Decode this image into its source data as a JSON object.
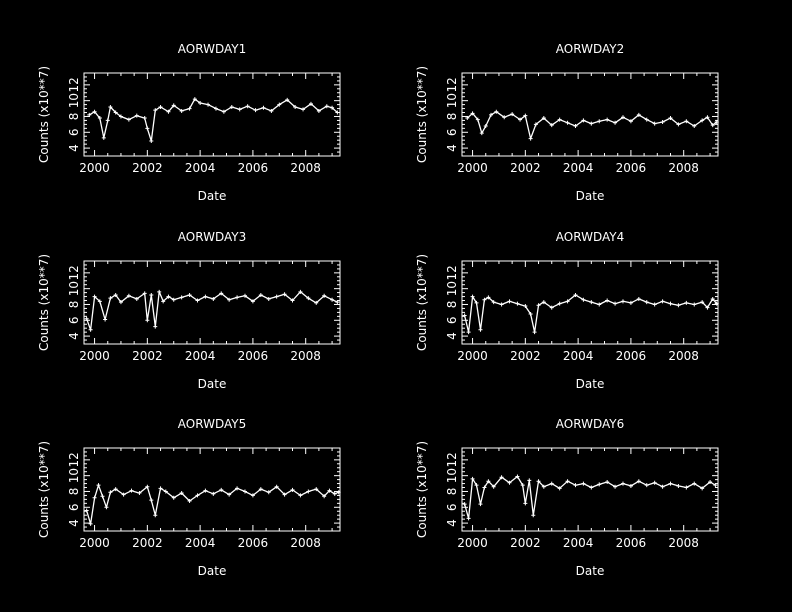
{
  "figure": {
    "background": "#000000",
    "foreground": "#ffffff"
  },
  "chart_data": [
    {
      "type": "line",
      "title": "AORWDAY1",
      "xlabel": "Date",
      "ylabel": "Counts (x10**7)",
      "xlim": [
        1999.6,
        2009.3
      ],
      "ylim": [
        3.0,
        13.5
      ],
      "xticks": [
        "2000",
        "2002",
        "2004",
        "2006",
        "2008"
      ],
      "yticks": [
        "4",
        "6",
        "8",
        "10",
        "12"
      ],
      "marker": "plus",
      "x": [
        1999.8,
        2000.0,
        2000.2,
        2000.35,
        2000.5,
        2000.6,
        2000.8,
        2001.0,
        2001.3,
        2001.6,
        2001.9,
        2002.0,
        2002.15,
        2002.3,
        2002.5,
        2002.8,
        2003.0,
        2003.3,
        2003.6,
        2003.8,
        2004.0,
        2004.3,
        2004.6,
        2004.9,
        2005.2,
        2005.5,
        2005.8,
        2006.1,
        2006.4,
        2006.7,
        2007.0,
        2007.3,
        2007.6,
        2007.9,
        2008.2,
        2008.5,
        2008.8,
        2009.0,
        2009.2
      ],
      "values": [
        8.2,
        8.6,
        7.8,
        5.3,
        7.5,
        9.2,
        8.5,
        8.0,
        7.6,
        8.1,
        7.8,
        6.5,
        4.9,
        8.8,
        9.2,
        8.6,
        9.4,
        8.7,
        9.0,
        10.2,
        9.7,
        9.5,
        9.0,
        8.6,
        9.2,
        8.9,
        9.3,
        8.8,
        9.1,
        8.7,
        9.5,
        10.1,
        9.2,
        8.9,
        9.6,
        8.7,
        9.3,
        9.1,
        8.5
      ]
    },
    {
      "type": "line",
      "title": "AORWDAY2",
      "xlabel": "Date",
      "ylabel": "Counts (x10**7)",
      "xlim": [
        1999.6,
        2009.3
      ],
      "ylim": [
        3.0,
        13.5
      ],
      "xticks": [
        "2000",
        "2002",
        "2004",
        "2006",
        "2008"
      ],
      "yticks": [
        "4",
        "6",
        "8",
        "10",
        "12"
      ],
      "marker": "plus",
      "x": [
        1999.8,
        2000.0,
        2000.2,
        2000.35,
        2000.5,
        2000.7,
        2000.9,
        2001.2,
        2001.5,
        2001.8,
        2002.0,
        2002.2,
        2002.4,
        2002.7,
        2003.0,
        2003.3,
        2003.6,
        2003.9,
        2004.2,
        2004.5,
        2004.8,
        2005.1,
        2005.4,
        2005.7,
        2006.0,
        2006.3,
        2006.6,
        2006.9,
        2007.2,
        2007.5,
        2007.8,
        2008.1,
        2008.4,
        2008.7,
        2008.9,
        2009.1,
        2009.25
      ],
      "values": [
        7.8,
        8.4,
        7.6,
        5.9,
        6.8,
        8.2,
        8.6,
        7.9,
        8.3,
        7.6,
        8.1,
        5.2,
        7.0,
        7.8,
        6.9,
        7.6,
        7.2,
        6.8,
        7.5,
        7.1,
        7.4,
        7.6,
        7.2,
        7.9,
        7.4,
        8.2,
        7.6,
        7.1,
        7.3,
        7.8,
        7.0,
        7.4,
        6.8,
        7.5,
        7.9,
        6.9,
        7.3
      ]
    },
    {
      "type": "line",
      "title": "AORWDAY3",
      "xlabel": "Date",
      "ylabel": "Counts (x10**7)",
      "xlim": [
        1999.6,
        2009.3
      ],
      "ylim": [
        3.0,
        13.5
      ],
      "xticks": [
        "2000",
        "2002",
        "2004",
        "2006",
        "2008"
      ],
      "yticks": [
        "4",
        "6",
        "8",
        "10",
        "12"
      ],
      "marker": "plus",
      "x": [
        1999.7,
        1999.85,
        2000.0,
        2000.2,
        2000.4,
        2000.6,
        2000.8,
        2001.0,
        2001.3,
        2001.6,
        2001.9,
        2002.0,
        2002.15,
        2002.3,
        2002.45,
        2002.6,
        2002.8,
        2003.0,
        2003.3,
        2003.6,
        2003.9,
        2004.2,
        2004.5,
        2004.8,
        2005.1,
        2005.4,
        2005.7,
        2006.0,
        2006.3,
        2006.6,
        2006.9,
        2007.2,
        2007.5,
        2007.8,
        2008.1,
        2008.4,
        2008.7,
        2009.0,
        2009.2
      ],
      "values": [
        6.2,
        4.8,
        9.0,
        8.4,
        6.1,
        8.8,
        9.2,
        8.3,
        9.1,
        8.7,
        9.4,
        6.0,
        9.2,
        5.2,
        9.6,
        8.4,
        9.0,
        8.6,
        8.9,
        9.2,
        8.5,
        9.0,
        8.7,
        9.4,
        8.6,
        8.9,
        9.1,
        8.4,
        9.2,
        8.7,
        9.0,
        9.3,
        8.5,
        9.6,
        8.8,
        8.2,
        9.1,
        8.6,
        8.3
      ]
    },
    {
      "type": "line",
      "title": "AORWDAY4",
      "xlabel": "Date",
      "ylabel": "Counts (x10**7)",
      "xlim": [
        1999.6,
        2009.3
      ],
      "ylim": [
        3.0,
        13.5
      ],
      "xticks": [
        "2000",
        "2002",
        "2004",
        "2006",
        "2008"
      ],
      "yticks": [
        "4",
        "6",
        "8",
        "10",
        "12"
      ],
      "marker": "plus",
      "x": [
        1999.7,
        1999.85,
        2000.0,
        2000.15,
        2000.3,
        2000.45,
        2000.6,
        2000.8,
        2001.1,
        2001.4,
        2001.7,
        2002.0,
        2002.2,
        2002.35,
        2002.5,
        2002.7,
        2003.0,
        2003.3,
        2003.6,
        2003.9,
        2004.2,
        2004.5,
        2004.8,
        2005.1,
        2005.4,
        2005.7,
        2006.0,
        2006.3,
        2006.6,
        2006.9,
        2007.2,
        2007.5,
        2007.8,
        2008.1,
        2008.4,
        2008.7,
        2008.9,
        2009.1,
        2009.25
      ],
      "values": [
        6.6,
        4.5,
        9.0,
        8.2,
        4.8,
        8.6,
        8.9,
        8.3,
        8.0,
        8.4,
        8.1,
        7.8,
        6.8,
        4.5,
        7.9,
        8.3,
        7.6,
        8.1,
        8.4,
        9.2,
        8.6,
        8.3,
        8.0,
        8.5,
        8.1,
        8.4,
        8.2,
        8.7,
        8.3,
        8.0,
        8.4,
        8.1,
        7.9,
        8.2,
        8.0,
        8.3,
        7.6,
        8.7,
        8.1
      ]
    },
    {
      "type": "line",
      "title": "AORWDAY5",
      "xlabel": "Date",
      "ylabel": "Counts (x10**7)",
      "xlim": [
        1999.6,
        2009.3
      ],
      "ylim": [
        3.0,
        13.5
      ],
      "xticks": [
        "2000",
        "2002",
        "2004",
        "2006",
        "2008"
      ],
      "yticks": [
        "4",
        "6",
        "8",
        "10",
        "12"
      ],
      "marker": "plus",
      "x": [
        1999.7,
        1999.85,
        2000.0,
        2000.15,
        2000.3,
        2000.45,
        2000.6,
        2000.8,
        2001.1,
        2001.4,
        2001.7,
        2002.0,
        2002.15,
        2002.3,
        2002.5,
        2002.7,
        2003.0,
        2003.3,
        2003.6,
        2003.9,
        2004.2,
        2004.5,
        2004.8,
        2005.1,
        2005.4,
        2005.7,
        2006.0,
        2006.3,
        2006.6,
        2006.9,
        2007.2,
        2007.5,
        2007.8,
        2008.1,
        2008.4,
        2008.7,
        2008.9,
        2009.1,
        2009.25
      ],
      "values": [
        5.6,
        3.9,
        7.2,
        8.8,
        7.4,
        6.0,
        7.9,
        8.3,
        7.6,
        8.1,
        7.8,
        8.6,
        6.9,
        5.0,
        8.4,
        8.0,
        7.2,
        7.8,
        6.8,
        7.5,
        8.1,
        7.7,
        8.2,
        7.6,
        8.4,
        8.0,
        7.5,
        8.3,
        7.9,
        8.6,
        7.6,
        8.2,
        7.5,
        8.0,
        8.3,
        7.4,
        8.1,
        7.7,
        7.9
      ]
    },
    {
      "type": "line",
      "title": "AORWDAY6",
      "xlabel": "Date",
      "ylabel": "Counts (x10**7)",
      "xlim": [
        1999.6,
        2009.3
      ],
      "ylim": [
        3.0,
        13.5
      ],
      "xticks": [
        "2000",
        "2002",
        "2004",
        "2006",
        "2008"
      ],
      "yticks": [
        "4",
        "6",
        "8",
        "10",
        "12"
      ],
      "marker": "plus",
      "x": [
        1999.7,
        1999.85,
        2000.0,
        2000.15,
        2000.3,
        2000.45,
        2000.6,
        2000.8,
        2001.1,
        2001.4,
        2001.7,
        2001.9,
        2002.0,
        2002.15,
        2002.3,
        2002.5,
        2002.7,
        2003.0,
        2003.3,
        2003.6,
        2003.9,
        2004.2,
        2004.5,
        2004.8,
        2005.1,
        2005.4,
        2005.7,
        2006.0,
        2006.3,
        2006.6,
        2006.9,
        2007.2,
        2007.5,
        2007.8,
        2008.1,
        2008.4,
        2008.7,
        2009.0,
        2009.2
      ],
      "values": [
        6.4,
        4.6,
        9.6,
        8.8,
        6.4,
        8.5,
        9.3,
        8.6,
        9.8,
        9.1,
        9.9,
        8.8,
        6.5,
        9.4,
        5.0,
        9.3,
        8.6,
        9.0,
        8.4,
        9.3,
        8.8,
        9.0,
        8.5,
        8.9,
        9.2,
        8.6,
        9.0,
        8.7,
        9.3,
        8.8,
        9.1,
        8.6,
        9.0,
        8.7,
        8.5,
        9.0,
        8.4,
        9.2,
        8.8
      ]
    }
  ]
}
